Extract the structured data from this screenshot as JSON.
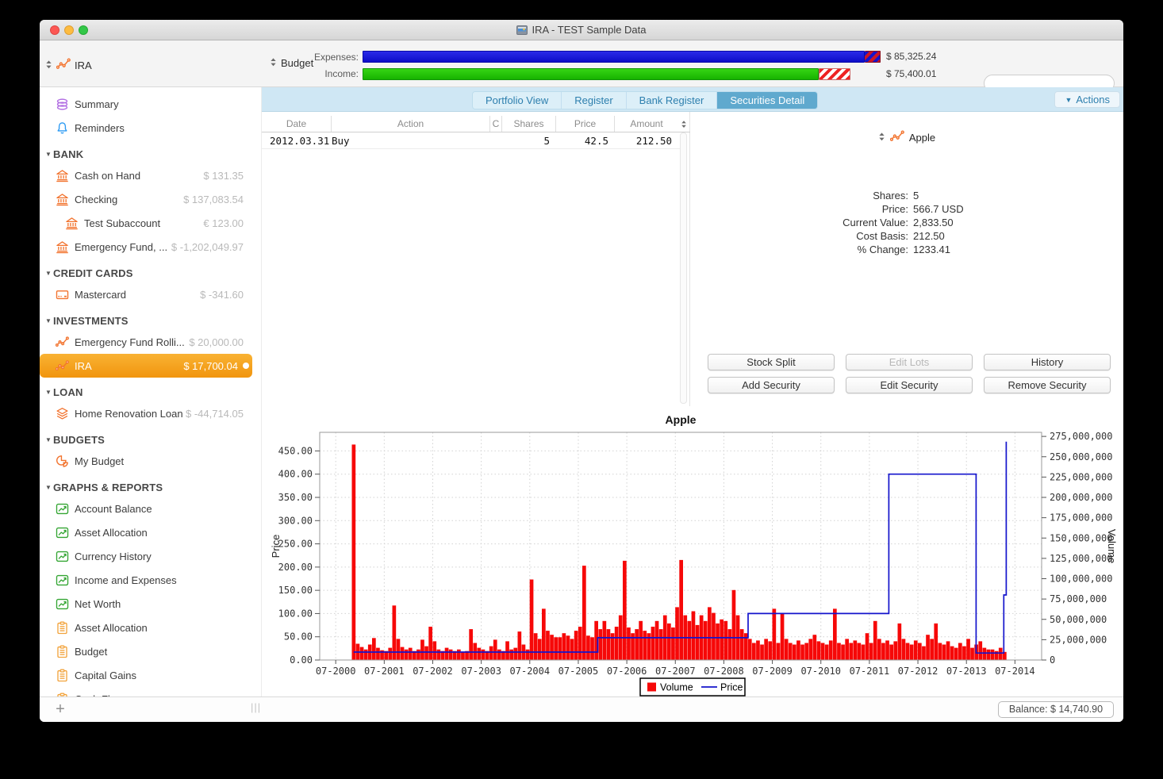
{
  "window": {
    "title": "IRA - TEST Sample Data"
  },
  "toolbar": {
    "account_label": "IRA",
    "account_icon": "line-chart",
    "view_label": "Budget",
    "expenses": {
      "label": "Expenses:",
      "value": "$ 85,325.24",
      "fill": 0.969,
      "over": 0.031,
      "color": "#1414cc"
    },
    "income": {
      "label": "Income:",
      "value": "$ 75,400.01",
      "fill": 0.881,
      "over": 0.061,
      "color": "#21c401"
    },
    "search": {
      "placeholder": "",
      "icon": "search"
    }
  },
  "sidebar": {
    "items": [
      {
        "type": "item",
        "icon": "coins",
        "label": "Summary"
      },
      {
        "type": "item",
        "icon": "bell",
        "label": "Reminders"
      },
      {
        "type": "section",
        "label": "BANK"
      },
      {
        "type": "item",
        "icon": "bank",
        "label": "Cash on Hand",
        "value": "$ 131.35"
      },
      {
        "type": "item",
        "icon": "bank",
        "label": "Checking",
        "value": "$ 137,083.54"
      },
      {
        "type": "item",
        "icon": "bank",
        "label": "Test Subaccount",
        "value": "€ 123.00",
        "indent": true
      },
      {
        "type": "item",
        "icon": "bank",
        "label": "Emergency Fund, ...",
        "value": "$ -1,202,049.97"
      },
      {
        "type": "section",
        "label": "CREDIT CARDS"
      },
      {
        "type": "item",
        "icon": "credit-card",
        "label": "Mastercard",
        "value": "$ -341.60"
      },
      {
        "type": "section",
        "label": "INVESTMENTS"
      },
      {
        "type": "item",
        "icon": "line-chart",
        "label": "Emergency Fund Rolli...",
        "value": "$ 20,000.00"
      },
      {
        "type": "item",
        "icon": "line-chart",
        "label": "IRA",
        "value": "$ 17,700.04",
        "selected": true
      },
      {
        "type": "section",
        "label": "LOAN"
      },
      {
        "type": "item",
        "icon": "layers",
        "label": "Home Renovation Loan",
        "value": "$ -44,714.05"
      },
      {
        "type": "section",
        "label": "BUDGETS"
      },
      {
        "type": "item",
        "icon": "pie-chart",
        "label": "My Budget"
      },
      {
        "type": "section",
        "label": "GRAPHS & REPORTS"
      },
      {
        "type": "item",
        "icon": "graph",
        "label": "Account Balance"
      },
      {
        "type": "item",
        "icon": "graph",
        "label": "Asset Allocation"
      },
      {
        "type": "item",
        "icon": "graph",
        "label": "Currency History"
      },
      {
        "type": "item",
        "icon": "graph",
        "label": "Income and Expenses"
      },
      {
        "type": "item",
        "icon": "graph",
        "label": "Net Worth"
      },
      {
        "type": "item",
        "icon": "report",
        "label": "Asset Allocation"
      },
      {
        "type": "item",
        "icon": "report",
        "label": "Budget"
      },
      {
        "type": "item",
        "icon": "report",
        "label": "Capital Gains"
      },
      {
        "type": "item",
        "icon": "report",
        "label": "Cash Fl",
        "partial": true
      }
    ]
  },
  "tabs": {
    "items": [
      "Portfolio View",
      "Register",
      "Bank Register",
      "Securities Detail"
    ],
    "selected": "Securities Detail",
    "actions_label": "Actions"
  },
  "table": {
    "columns": [
      "Date",
      "Action",
      "C",
      "Shares",
      "Price",
      "Amount"
    ],
    "rows": [
      {
        "cells": [
          "2012.03.31",
          "Buy",
          "",
          "5",
          "42.5",
          "212.50"
        ]
      }
    ]
  },
  "security": {
    "name": "Apple",
    "icon": "line-chart",
    "stats": [
      {
        "label": "Shares:",
        "value": "5"
      },
      {
        "label": "Price:",
        "value": "566.7 USD"
      },
      {
        "label": "Current Value:",
        "value": "2,833.50"
      },
      {
        "label": "Cost Basis:",
        "value": "212.50"
      },
      {
        "label": "% Change:",
        "value": "1233.41"
      }
    ],
    "buttons": [
      {
        "label": "Stock Split",
        "enabled": true
      },
      {
        "label": "Edit Lots",
        "enabled": false
      },
      {
        "label": "History",
        "enabled": true
      },
      {
        "label": "Add Security",
        "enabled": true
      },
      {
        "label": "Edit Security",
        "enabled": true
      },
      {
        "label": "Remove Security",
        "enabled": true
      }
    ]
  },
  "chart_data": {
    "type": "combo",
    "title": "Apple",
    "grid": true,
    "legend": [
      "Volume",
      "Price"
    ],
    "legend_position": "bottom",
    "x_axis": {
      "range": [
        2000.17,
        2015.05
      ],
      "tick_labels": [
        "07-2000",
        "07-2001",
        "07-2002",
        "07-2003",
        "07-2004",
        "07-2005",
        "07-2006",
        "07-2007",
        "07-2008",
        "07-2009",
        "07-2010",
        "07-2011",
        "07-2012",
        "07-2013",
        "07-2014"
      ],
      "first_tick_year": 2000.5,
      "tick_step_years": 1
    },
    "y_left": {
      "label": "Price",
      "range": [
        0,
        490
      ],
      "tick_step": 50,
      "tick_labels": [
        "0.00",
        "50.00",
        "100.00",
        "150.00",
        "200.00",
        "250.00",
        "300.00",
        "350.00",
        "400.00",
        "450.00"
      ]
    },
    "y_right": {
      "label": "Volume",
      "range": [
        0,
        280000000
      ],
      "tick_step": 25000000,
      "tick_labels": [
        "0",
        "25,000,000",
        "50,000,000",
        "75,000,000",
        "100,000,000",
        "125,000,000",
        "150,000,000",
        "175,000,000",
        "200,000,000",
        "225,000,000",
        "250,000,000",
        "275,000,000"
      ]
    },
    "series": [
      {
        "name": "Volume",
        "type": "bar",
        "axis": "right",
        "color": "#f60808",
        "unit": "millions",
        "x_start_year": 2000.87,
        "x_step_months": 1,
        "values": [
          265,
          20,
          16,
          13,
          19,
          27,
          15,
          12,
          11,
          15,
          67,
          26,
          16,
          13,
          15,
          11,
          13,
          25,
          17,
          41,
          23,
          13,
          11,
          15,
          13,
          11,
          13,
          10,
          11,
          38,
          21,
          15,
          13,
          11,
          17,
          25,
          13,
          11,
          23,
          13,
          15,
          35,
          19,
          13,
          99,
          33,
          26,
          63,
          36,
          31,
          28,
          28,
          33,
          30,
          26,
          36,
          41,
          116,
          30,
          28,
          48,
          38,
          48,
          38,
          33,
          41,
          55,
          122,
          40,
          33,
          38,
          48,
          36,
          33,
          41,
          48,
          38,
          55,
          45,
          40,
          65,
          123,
          55,
          48,
          60,
          43,
          55,
          48,
          65,
          58,
          45,
          50,
          48,
          38,
          86,
          55,
          38,
          33,
          26,
          21,
          24,
          19,
          26,
          23,
          63,
          21,
          58,
          26,
          21,
          19,
          24,
          19,
          21,
          26,
          31,
          23,
          21,
          19,
          24,
          63,
          21,
          19,
          26,
          21,
          24,
          21,
          19,
          33,
          21,
          48,
          26,
          21,
          24,
          19,
          23,
          45,
          26,
          21,
          19,
          24,
          21,
          17,
          31,
          26,
          45,
          21,
          19,
          23,
          17,
          15,
          21,
          17,
          26,
          15,
          19,
          23,
          15,
          13,
          13,
          11,
          15,
          10
        ]
      },
      {
        "name": "Price",
        "type": "step-line",
        "axis": "left",
        "color": "#1414cc",
        "points": [
          [
            2000.87,
            17
          ],
          [
            2005.9,
            17
          ],
          [
            2005.9,
            48
          ],
          [
            2009.0,
            48
          ],
          [
            2009.0,
            100
          ],
          [
            2011.9,
            100
          ],
          [
            2011.9,
            400
          ],
          [
            2013.7,
            400
          ],
          [
            2013.7,
            15
          ],
          [
            2014.27,
            15
          ],
          [
            2014.27,
            140
          ],
          [
            2014.32,
            140
          ],
          [
            2014.32,
            470
          ]
        ]
      }
    ]
  },
  "statusbar": {
    "add_label": "+",
    "balance": "Balance: $ 14,740.90"
  }
}
